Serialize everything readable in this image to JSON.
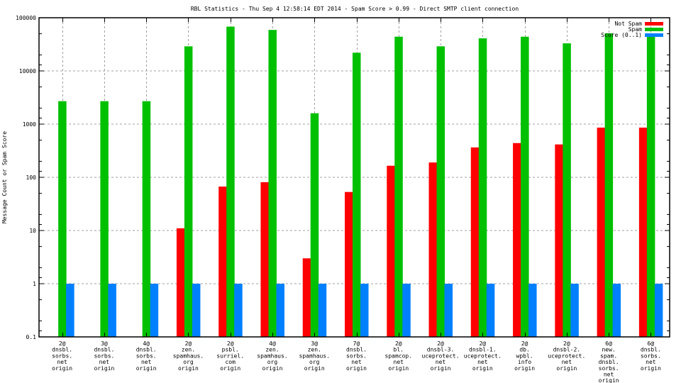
{
  "chart_data": {
    "type": "bar",
    "title": "RBL Statistics - Thu Sep  4 12:58:14 EDT 2014 - Spam Score > 0.99 - Direct SMTP client connection",
    "xlabel": "",
    "ylabel": "Message Count or Spam Score",
    "yscale": "log",
    "ylim": [
      0.1,
      100000
    ],
    "yticks": [
      "0.1",
      "1",
      "10",
      "100",
      "1000",
      "10000",
      "100000"
    ],
    "grid": true,
    "legend_position": "top-right",
    "categories": [
      [
        "2@",
        "dnsbl.",
        "sorbs.",
        "net",
        "origin"
      ],
      [
        "3@",
        "dnsbl.",
        "sorbs.",
        "net",
        "origin"
      ],
      [
        "4@",
        "dnsbl.",
        "sorbs.",
        "net",
        "origin"
      ],
      [
        "2@",
        "zen.",
        "spamhaus.",
        "org",
        "origin"
      ],
      [
        "2@",
        "psbl.",
        "surriel.",
        "com",
        "origin"
      ],
      [
        "4@",
        "zen.",
        "spamhaus.",
        "org",
        "origin"
      ],
      [
        "3@",
        "zen.",
        "spamhaus.",
        "org",
        "origin"
      ],
      [
        "7@",
        "dnsbl.",
        "sorbs.",
        "net",
        "origin"
      ],
      [
        "2@",
        "bl.",
        "spamcop.",
        "net",
        "origin"
      ],
      [
        "2@",
        "dnsbl-3.",
        "uceprotect.",
        "net",
        "origin"
      ],
      [
        "2@",
        "dnsbl-1.",
        "uceprotect.",
        "net",
        "origin"
      ],
      [
        "2@",
        "db.",
        "wpbl.",
        "info",
        "origin"
      ],
      [
        "2@",
        "dnsbl-2.",
        "uceprotect.",
        "net",
        "origin"
      ],
      [
        "6@",
        "new.",
        "spam.",
        "dnsbl.",
        "sorbs.",
        "net",
        "origin"
      ],
      [
        "6@",
        "dnsbl.",
        "sorbs.",
        "net",
        "origin"
      ]
    ],
    "series": [
      {
        "name": "Not Spam",
        "color": "#ff0000",
        "values": [
          0,
          0,
          0,
          11,
          67,
          81,
          3,
          53,
          165,
          190,
          365,
          440,
          415,
          860,
          860
        ]
      },
      {
        "name": "Spam",
        "color": "#00c000",
        "values": [
          2700,
          2700,
          2700,
          29000,
          68000,
          59000,
          1600,
          22000,
          44000,
          29000,
          41000,
          44000,
          33000,
          51000,
          51000
        ]
      },
      {
        "name": "Score (0..1)",
        "color": "#0080ff",
        "values": [
          1,
          1,
          1,
          1,
          1,
          1,
          1,
          1,
          1,
          1,
          1,
          1,
          1,
          1,
          1
        ]
      }
    ]
  }
}
